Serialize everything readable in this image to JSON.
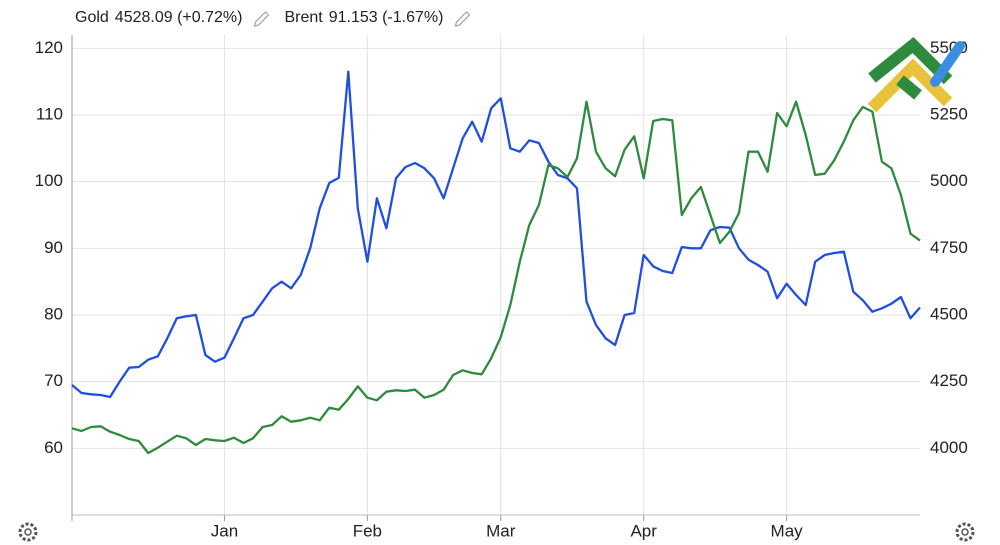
{
  "chart_data": {
    "type": "line",
    "categories": [
      null,
      null,
      null,
      null,
      null,
      null,
      null,
      null,
      null,
      null,
      null,
      null,
      null,
      null,
      null,
      null,
      "Jan",
      null,
      null,
      null,
      null,
      null,
      null,
      null,
      null,
      null,
      null,
      null,
      null,
      null,
      null,
      "Feb",
      null,
      null,
      null,
      null,
      null,
      null,
      null,
      null,
      null,
      null,
      null,
      null,
      null,
      "Mar",
      null,
      null,
      null,
      null,
      null,
      null,
      null,
      null,
      null,
      null,
      null,
      null,
      null,
      null,
      "Apr",
      null,
      null,
      null,
      null,
      null,
      null,
      null,
      null,
      null,
      null,
      null,
      null,
      null,
      null,
      "May",
      null,
      null,
      null,
      null,
      null,
      null,
      null,
      null,
      null,
      null,
      null,
      null,
      null,
      null
    ],
    "series": [
      {
        "name": "Gold",
        "legend_value": "4528.09 (+0.72%)",
        "color": "#1f4fe0",
        "axis": "y2",
        "values": [
          4237.5,
          4207.5,
          4202.5,
          4200,
          4192.5,
          4250,
          4302.5,
          4305,
          4332.5,
          4345,
          4412.5,
          4487.5,
          4495,
          4500,
          4350,
          4325,
          4340,
          4412.5,
          4487.5,
          4500,
          4550,
          4600,
          4625,
          4600,
          4650,
          4750,
          4900,
          4995,
          5015,
          5412.5,
          4900,
          4700,
          4937.5,
          4825,
          5012.5,
          5055,
          5070,
          5050,
          5012.5,
          4937.5,
          5050,
          5162.5,
          5225,
          5150,
          5275,
          5312.5,
          5125,
          5112.5,
          5155,
          5145,
          5075,
          5025,
          5012.5,
          4975,
          4550,
          4462.5,
          4412.5,
          4387.5,
          4500,
          4507.5,
          4725,
          4682.5,
          4665,
          4657.5,
          4755,
          4750,
          4750,
          4817.5,
          4830,
          4827.5,
          4750,
          4707.5,
          4687.5,
          4662.5,
          4562.5,
          4617.5,
          4575,
          4537.5,
          4700,
          4725,
          4732.5,
          4737.5,
          4587.5,
          4555,
          4512.5,
          4525,
          4542.5,
          4567.5,
          4487.5,
          4528.09
        ]
      },
      {
        "name": "Brent",
        "legend_value": "91.153 (-1.67%)",
        "color": "#2e8b3e",
        "values": [
          63,
          62.6,
          63.2,
          63.3,
          62.5,
          62,
          61.4,
          61.1,
          59.3,
          60.1,
          61,
          61.9,
          61.5,
          60.5,
          61.4,
          61.2,
          61.1,
          61.6,
          60.8,
          61.5,
          63.2,
          63.5,
          64.8,
          64,
          64.2,
          64.6,
          64.2,
          66.1,
          65.8,
          67.4,
          69.3,
          67.6,
          67.2,
          68.5,
          68.7,
          68.6,
          68.8,
          67.6,
          68,
          68.8,
          71,
          71.7,
          71.3,
          71.1,
          73.5,
          76.7,
          81.5,
          88,
          93.5,
          96.5,
          102.5,
          102,
          100.7,
          103.5,
          112,
          104.5,
          102,
          100.8,
          104.8,
          106.8,
          100.5,
          109.1,
          109.4,
          109.2,
          95,
          97.5,
          99.2,
          95,
          90.8,
          92.5,
          95.3,
          104.5,
          104.5,
          101.5,
          110.3,
          108.3,
          112,
          107,
          101,
          101.2,
          103.2,
          106,
          109.2,
          111.2,
          110.5,
          103,
          102,
          98,
          92.2,
          91.153
        ]
      }
    ],
    "ylim": [
      50,
      122
    ],
    "yticks": [
      60,
      70,
      80,
      90,
      100,
      110,
      120
    ],
    "y2lim": [
      3750,
      5550
    ],
    "y2ticks": [
      4000,
      4250,
      4500,
      4750,
      5000,
      5250,
      5500
    ],
    "grid": true
  }
}
